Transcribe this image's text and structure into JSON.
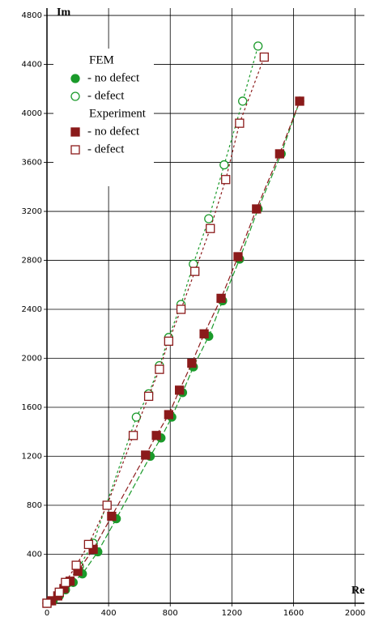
{
  "chart_data": {
    "type": "scatter",
    "x_label": "Re",
    "y_label": "Im",
    "xlim": [
      0,
      2060
    ],
    "ylim": [
      0,
      4860
    ],
    "xticks": [
      0,
      400,
      800,
      1200,
      1600,
      2000
    ],
    "yticks": [
      400,
      800,
      1200,
      1600,
      2000,
      2400,
      2800,
      3200,
      3600,
      4000,
      4400,
      4800
    ],
    "grid": true,
    "trend_lines": true,
    "legend_position": "upper left",
    "legend_groups": [
      "FEM",
      "Experiment"
    ],
    "series": [
      {
        "name": "- no defect",
        "group": 0,
        "marker": "circle",
        "filled": true,
        "color": "#1a9a2a",
        "x": [
          0,
          40,
          80,
          120,
          170,
          230,
          330,
          450,
          670,
          740,
          810,
          880,
          950,
          1050,
          1140,
          1250,
          1370,
          1520,
          1640
        ],
        "values": [
          0,
          20,
          60,
          110,
          170,
          240,
          420,
          690,
          1200,
          1350,
          1520,
          1720,
          1930,
          2180,
          2470,
          2810,
          3220,
          3670,
          4100
        ]
      },
      {
        "name": "- defect",
        "group": 0,
        "marker": "circle",
        "filled": false,
        "color": "#1a9a2a",
        "x": [
          0,
          80,
          130,
          210,
          300,
          580,
          660,
          730,
          790,
          870,
          950,
          1050,
          1150,
          1270,
          1370
        ],
        "values": [
          0,
          80,
          160,
          300,
          490,
          1520,
          1710,
          1940,
          2170,
          2440,
          2770,
          3140,
          3580,
          4100,
          4550
        ]
      },
      {
        "name": "- no defect",
        "group": 1,
        "marker": "square",
        "filled": true,
        "color": "#8b1a1a",
        "x": [
          0,
          30,
          70,
          110,
          150,
          200,
          300,
          420,
          640,
          710,
          790,
          860,
          940,
          1020,
          1130,
          1240,
          1360,
          1510,
          1640
        ],
        "values": [
          0,
          20,
          60,
          120,
          180,
          260,
          440,
          710,
          1210,
          1370,
          1540,
          1740,
          1960,
          2200,
          2490,
          2830,
          3220,
          3670,
          4100
        ]
      },
      {
        "name": "- defect",
        "group": 1,
        "marker": "square",
        "filled": false,
        "color": "#8b1a1a",
        "x": [
          0,
          80,
          120,
          190,
          270,
          390,
          560,
          660,
          730,
          790,
          870,
          960,
          1060,
          1160,
          1250,
          1410
        ],
        "values": [
          0,
          90,
          170,
          310,
          480,
          800,
          1370,
          1690,
          1910,
          2140,
          2400,
          2710,
          3060,
          3460,
          3920,
          4460
        ]
      }
    ]
  }
}
